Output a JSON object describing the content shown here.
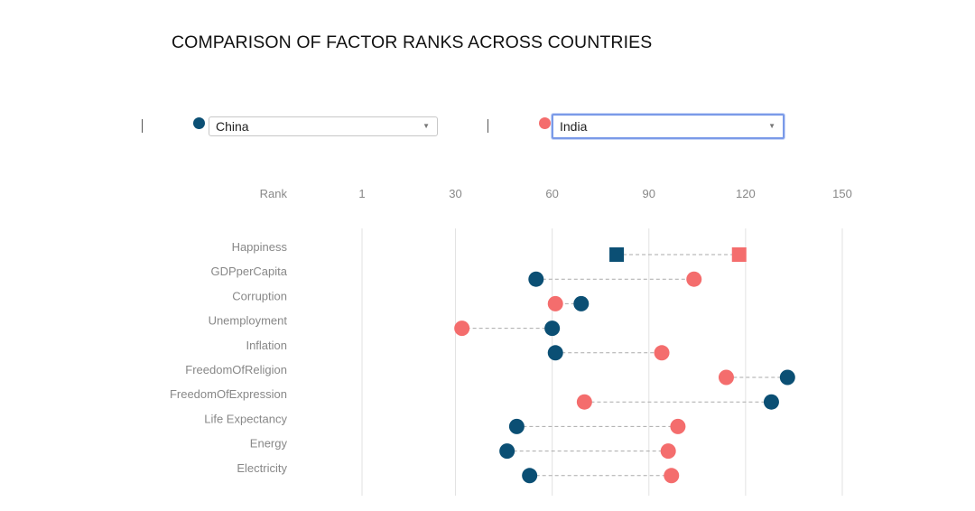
{
  "title": "COMPARISON OF FACTOR RANKS ACROSS COUNTRIES",
  "controls": {
    "left": {
      "selected": "China",
      "color": "#0b4f74"
    },
    "right": {
      "selected": "India",
      "color": "#f46d6d"
    }
  },
  "chart_data": {
    "type": "dumbbell",
    "title": "COMPARISON OF FACTOR RANKS ACROSS COUNTRIES",
    "xlabel": "Rank",
    "x_ticks": [
      1,
      30,
      60,
      90,
      120,
      150
    ],
    "xlim": [
      1,
      150
    ],
    "grid": true,
    "categories": [
      "Happiness",
      "GDPperCapita",
      "Corruption",
      "Unemployment",
      "Inflation",
      "FreedomOfReligion",
      "FreedomOfExpression",
      "Life Expectancy",
      "Energy",
      "Electricity"
    ],
    "series": [
      {
        "name": "China",
        "color": "#0b4f74",
        "values": [
          80,
          55,
          69,
          60,
          61,
          133,
          128,
          49,
          46,
          53
        ]
      },
      {
        "name": "India",
        "color": "#f46d6d",
        "values": [
          118,
          104,
          61,
          32,
          94,
          114,
          70,
          99,
          96,
          97
        ]
      }
    ],
    "highlight_row": "Happiness"
  }
}
